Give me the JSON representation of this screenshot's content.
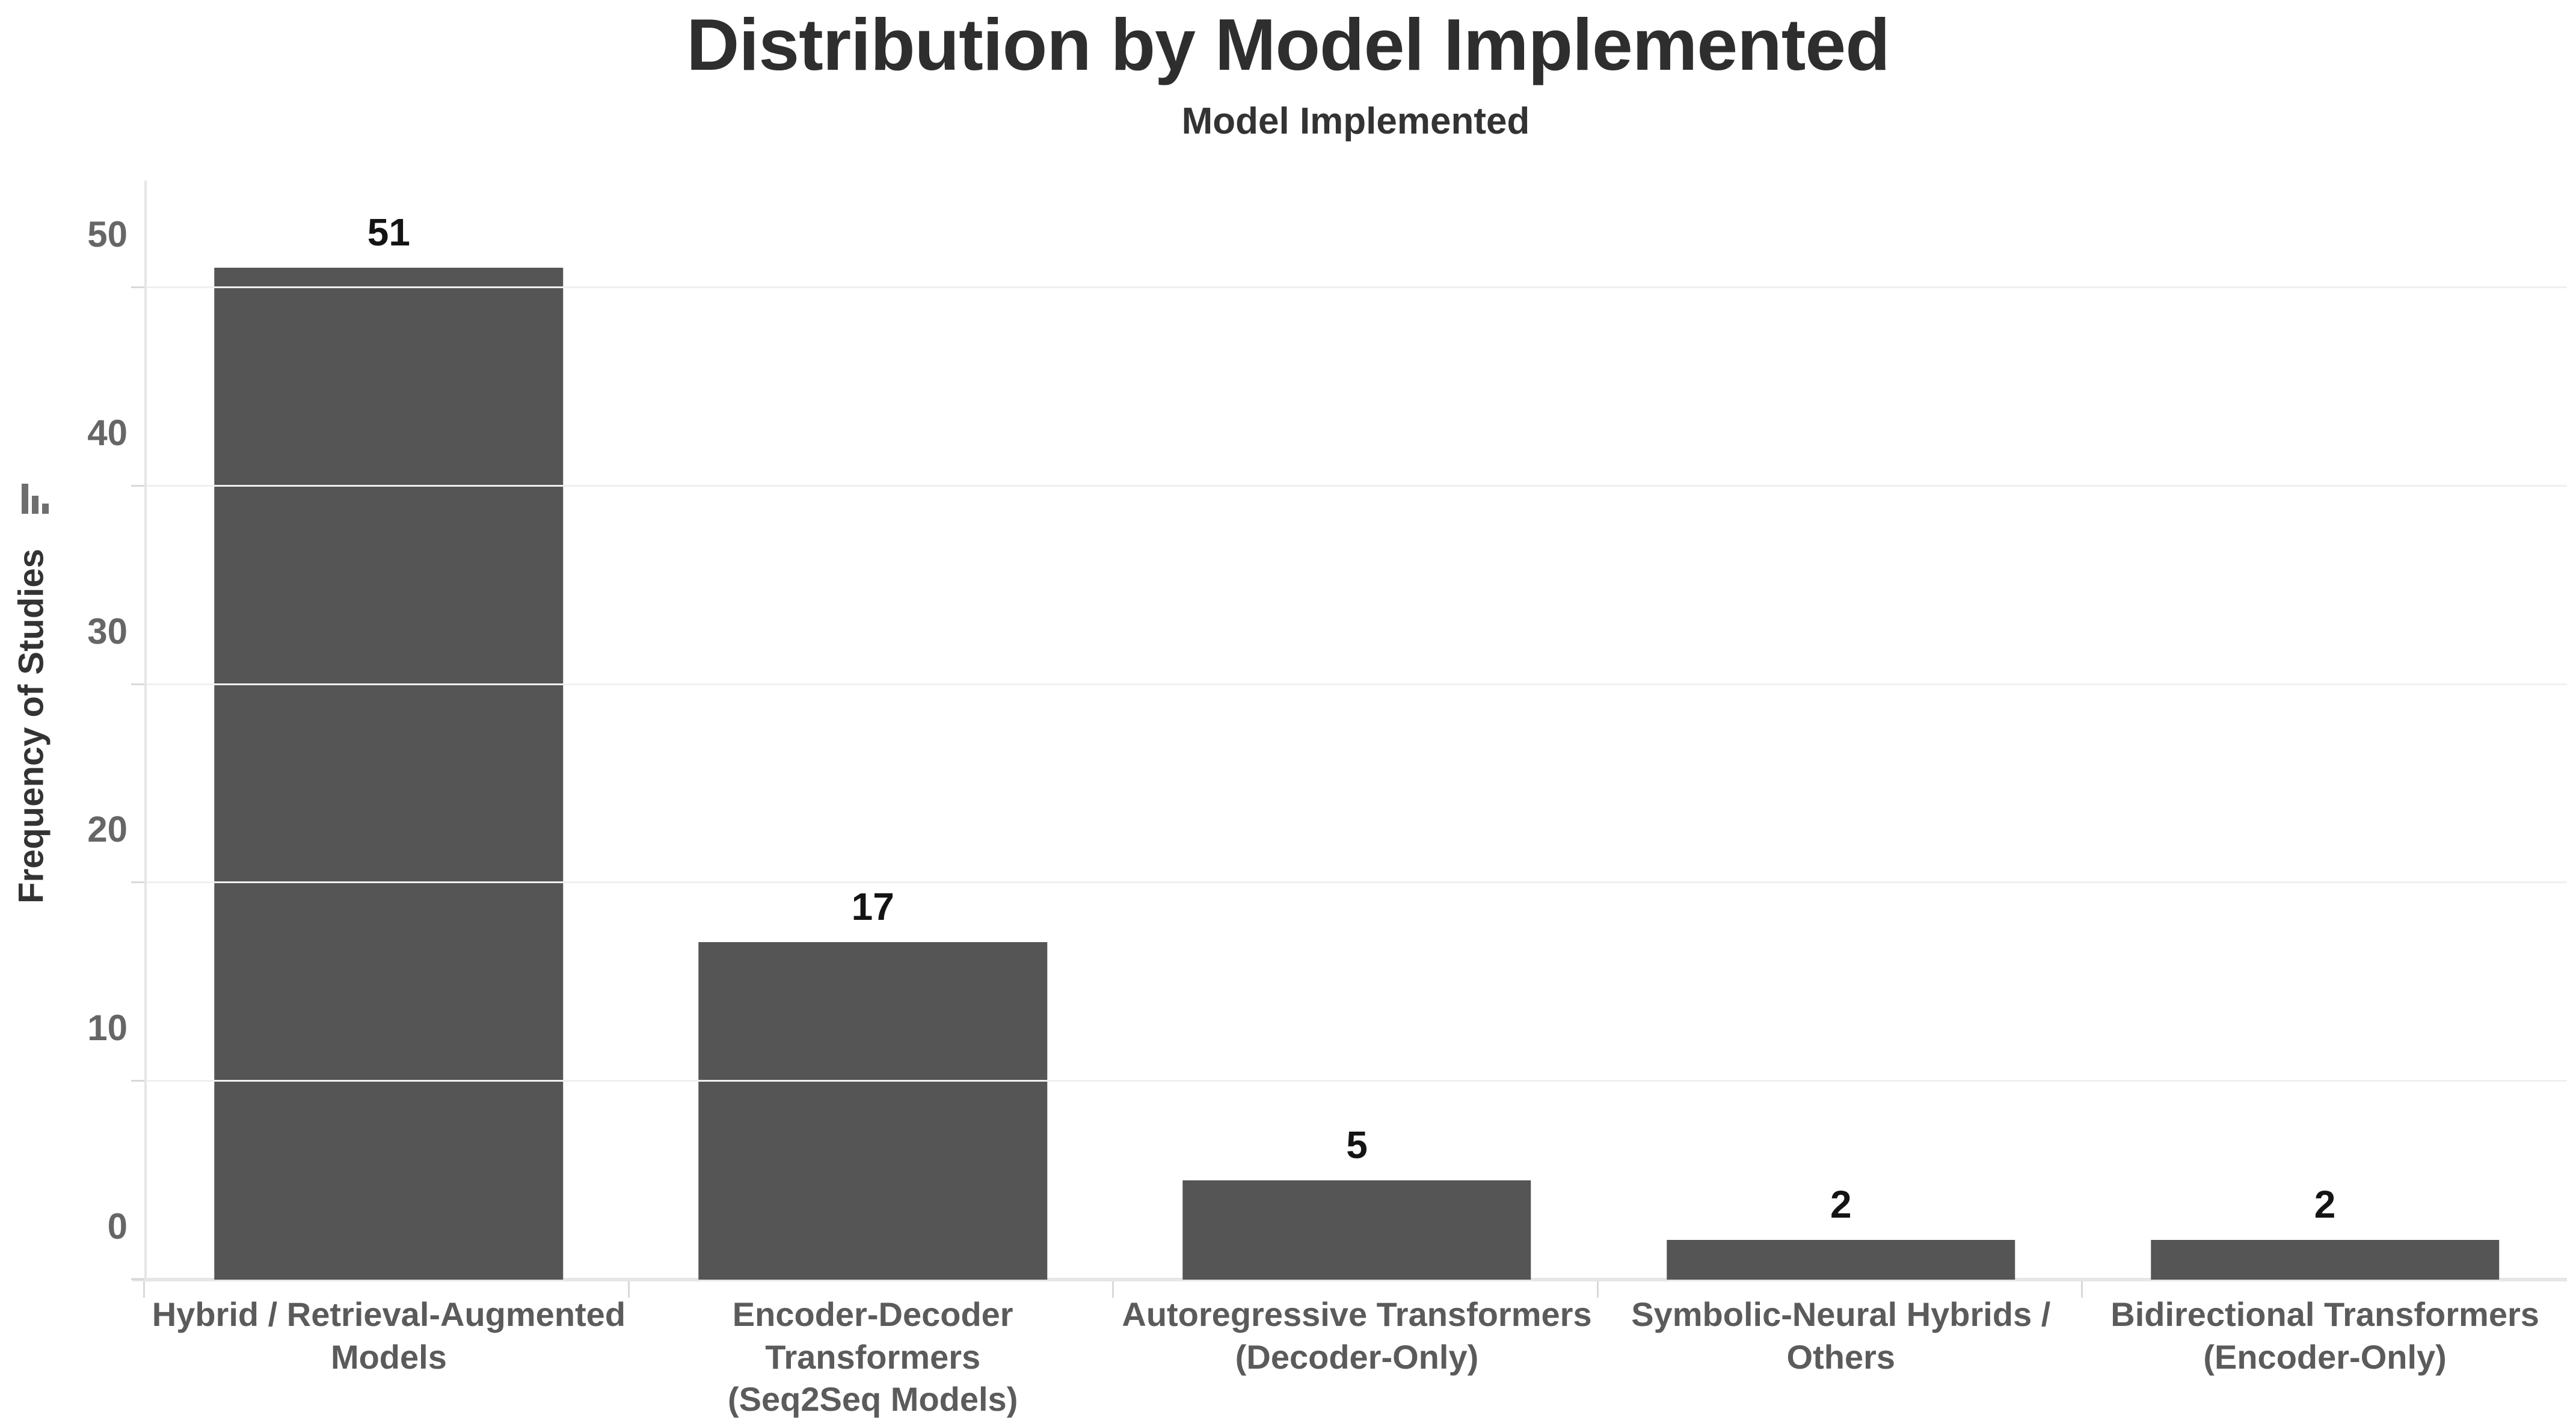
{
  "header": {
    "title": "Distribution by Model Implemented",
    "subtitle": "Model Implemented"
  },
  "y_axis": {
    "label": "Frequency of Studies",
    "icon": "sort-descending-bars-icon",
    "tick_labels": [
      "0",
      "10",
      "20",
      "30",
      "40",
      "50"
    ]
  },
  "chart_data": {
    "type": "bar",
    "title": "Distribution by Model Implemented",
    "xlabel": "Model Implemented",
    "ylabel": "Frequency of Studies",
    "categories": [
      "Hybrid / Retrieval-Augmented Models",
      "Encoder-Decoder Transformers (Seq2Seq Models)",
      "Autoregressive Transformers (Decoder-Only)",
      "Symbolic-Neural Hybrids / Others",
      "Bidirectional Transformers (Encoder-Only)"
    ],
    "categories_lines": [
      [
        "Hybrid / Retrieval-Augmented",
        "Models"
      ],
      [
        "Encoder-Decoder Transformers",
        "(Seq2Seq Models)"
      ],
      [
        "Autoregressive Transformers",
        "(Decoder-Only)"
      ],
      [
        "Symbolic-Neural Hybrids /",
        "Others"
      ],
      [
        "Bidirectional Transformers",
        "(Encoder-Only)"
      ]
    ],
    "values": [
      51,
      17,
      5,
      2,
      2
    ],
    "value_labels": [
      "51",
      "17",
      "5",
      "2",
      "2"
    ],
    "yticks": [
      0,
      10,
      20,
      30,
      40,
      50
    ],
    "ylim": [
      0,
      55.4
    ],
    "grid": true,
    "legend": "none",
    "bar_orientation": "vertical"
  },
  "colors": {
    "background": "#ffffff",
    "bar": "#555555",
    "title_text": "#2e2e2e",
    "subtitle_text": "#333333",
    "axis_title_text": "#333333",
    "tick_label_text": "#666666",
    "category_label_text": "#5b5b5b",
    "value_label_text": "#141414",
    "gridline": "#f0f0f0",
    "axis_line": "#e6e6e6",
    "tick_mark": "#d9d9d9",
    "sort_icon": "#6e6e6e"
  }
}
